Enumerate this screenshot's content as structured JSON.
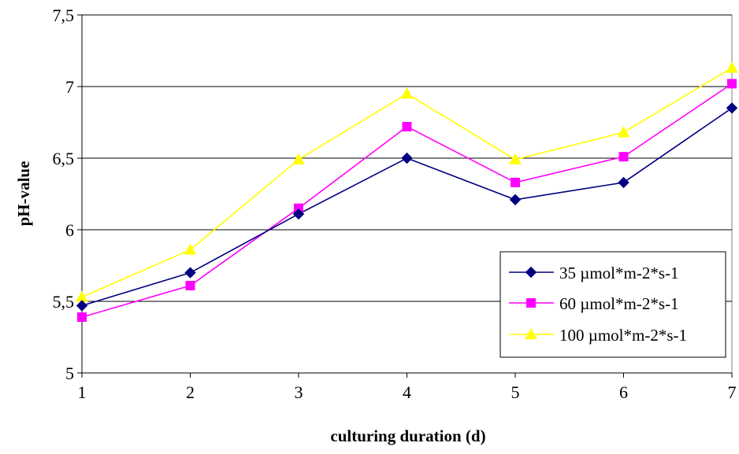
{
  "chart_data": {
    "type": "line",
    "x": [
      1,
      2,
      3,
      4,
      5,
      6,
      7
    ],
    "series": [
      {
        "name": "35 µmol*m-2*s-1",
        "values": [
          5.47,
          5.7,
          6.11,
          6.5,
          6.21,
          6.33,
          6.85
        ],
        "color": "#000080",
        "marker": "diamond"
      },
      {
        "name": "60 µmol*m-2*s-1",
        "values": [
          5.39,
          5.61,
          6.15,
          6.72,
          6.33,
          6.51,
          7.02
        ],
        "color": "#ff00ff",
        "marker": "square"
      },
      {
        "name": "100 µmol*m-2*s-1",
        "values": [
          5.53,
          5.86,
          6.49,
          6.95,
          6.49,
          6.68,
          7.13
        ],
        "color": "#ffff00",
        "marker": "triangle"
      }
    ],
    "xlabel": "culturing duration (d)",
    "ylabel": "pH-value",
    "xlim": [
      1,
      7
    ],
    "ylim": [
      5,
      7.5
    ],
    "x_ticks": [
      "1",
      "2",
      "3",
      "4",
      "5",
      "6",
      "7"
    ],
    "y_ticks": [
      {
        "value": 5,
        "label": "5"
      },
      {
        "value": 5.5,
        "label": "5,5"
      },
      {
        "value": 6,
        "label": "6"
      },
      {
        "value": 6.5,
        "label": "6,5"
      },
      {
        "value": 7,
        "label": "7"
      },
      {
        "value": 7.5,
        "label": "7,5"
      }
    ],
    "grid": "horizontal",
    "legend_position": "lower-right"
  }
}
